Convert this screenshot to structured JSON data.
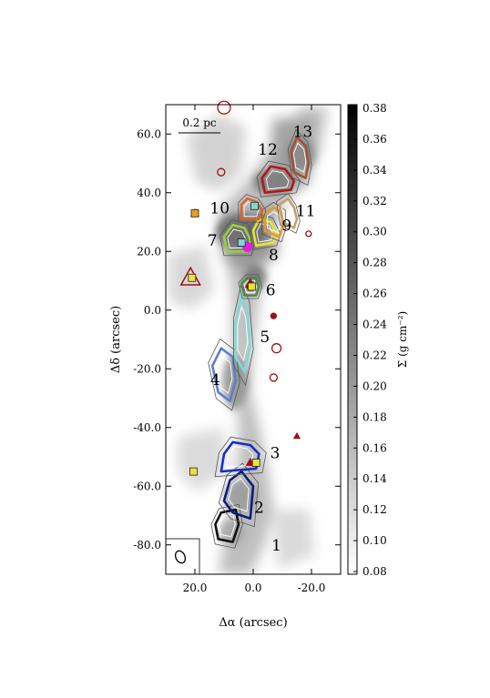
{
  "chart_data": {
    "type": "heatmap",
    "title": "",
    "xlabel": "Δα (arcsec)",
    "ylabel": "Δδ (arcsec)",
    "xlim": [
      30,
      -30
    ],
    "ylim": [
      -90,
      70
    ],
    "x_ticks": [
      {
        "v": 20,
        "label": "20.0"
      },
      {
        "v": 0,
        "label": "0.0"
      },
      {
        "v": -20,
        "label": "-20.0"
      }
    ],
    "y_ticks": [
      {
        "v": 60,
        "label": "60.0"
      },
      {
        "v": 40,
        "label": "40.0"
      },
      {
        "v": 20,
        "label": "20.0"
      },
      {
        "v": 0,
        "label": "0.0"
      },
      {
        "v": -20,
        "label": "-20.0"
      },
      {
        "v": -40,
        "label": "-40.0"
      },
      {
        "v": -60,
        "label": "-60.0"
      },
      {
        "v": -80,
        "label": "-80.0"
      }
    ],
    "scale_bar_label": "0.2 pc",
    "colorbar": {
      "label": "Σ (g cm⁻²)",
      "range": [
        0.08,
        0.38
      ],
      "ticks": [
        "0.38",
        "0.36",
        "0.34",
        "0.32",
        "0.30",
        "0.28",
        "0.26",
        "0.24",
        "0.22",
        "0.20",
        "0.18",
        "0.16",
        "0.14",
        "0.12",
        "0.10",
        "0.08"
      ]
    },
    "clumps": [
      {
        "label": "1",
        "x": 9,
        "y": -73,
        "color": "#111111"
      },
      {
        "label": "2",
        "x": 5,
        "y": -63,
        "color": "#0b1e7a"
      },
      {
        "label": "3",
        "x": 5,
        "y": -50,
        "color": "#1a2fbf"
      },
      {
        "label": "4",
        "x": 10,
        "y": -22,
        "color": "#5b7fc9"
      },
      {
        "label": "5",
        "x": 4,
        "y": -8,
        "color": "#7fd8d8"
      },
      {
        "label": "6",
        "x": 1,
        "y": 8,
        "color": "#4a8a4a"
      },
      {
        "label": "7",
        "x": 6,
        "y": 24,
        "color": "#9ad03a"
      },
      {
        "label": "8",
        "x": -4,
        "y": 26,
        "color": "#e6e62a"
      },
      {
        "label": "9",
        "x": -7,
        "y": 30,
        "color": "#e39a2a"
      },
      {
        "label": "10",
        "x": 1,
        "y": 34,
        "color": "#d9642a"
      },
      {
        "label": "11",
        "x": -12,
        "y": 33,
        "color": "#c8a06a"
      },
      {
        "label": "12",
        "x": -8,
        "y": 44,
        "color": "#b01818"
      },
      {
        "label": "13",
        "x": -16,
        "y": 52,
        "color": "#a0522d"
      }
    ],
    "number_labels": [
      {
        "text": "1",
        "x": -8,
        "y": -82
      },
      {
        "text": "2",
        "x": -2,
        "y": -69
      },
      {
        "text": "3",
        "x": -7.5,
        "y": -50.5
      },
      {
        "text": "4",
        "x": 13,
        "y": -25.5
      },
      {
        "text": "5",
        "x": -4,
        "y": -11
      },
      {
        "text": "6",
        "x": -6,
        "y": 5
      },
      {
        "text": "7",
        "x": 14,
        "y": 22
      },
      {
        "text": "8",
        "x": -7,
        "y": 17
      },
      {
        "text": "9",
        "x": -11.5,
        "y": 27
      },
      {
        "text": "10",
        "x": 11.5,
        "y": 33
      },
      {
        "text": "11",
        "x": -18,
        "y": 32
      },
      {
        "text": "12",
        "x": -5,
        "y": 53
      },
      {
        "text": "13",
        "x": -17,
        "y": 59
      }
    ],
    "square_markers": [
      {
        "x": 20,
        "y": 33,
        "fill": "#e8a020"
      },
      {
        "x": 21,
        "y": 11,
        "fill": "#f0e040"
      },
      {
        "x": 4,
        "y": 23,
        "fill": "#7fd8d8"
      },
      {
        "x": -0.5,
        "y": 35.5,
        "fill": "#7fd8d8"
      },
      {
        "x": 0.5,
        "y": 8,
        "fill": "#e6e62a"
      },
      {
        "x": -1,
        "y": -52,
        "fill": "#f0e040"
      },
      {
        "x": 20.5,
        "y": -55,
        "fill": "#f0e040"
      }
    ],
    "circle_markers": [
      {
        "x": 10,
        "y": 69,
        "r": 7,
        "filled": false
      },
      {
        "x": 11,
        "y": 47,
        "r": 4,
        "filled": false
      },
      {
        "x": -8,
        "y": -13,
        "r": 5,
        "filled": false
      },
      {
        "x": -7,
        "y": -23,
        "r": 4,
        "filled": false
      },
      {
        "x": -19,
        "y": 26,
        "r": 3,
        "filled": false
      },
      {
        "x": -7,
        "y": -2,
        "r": 3,
        "filled": true
      },
      {
        "x": 1,
        "y": 8,
        "r": 4,
        "filled": true
      },
      {
        "x": 2,
        "y": 21.5,
        "r": 5,
        "filled": true,
        "fill": "#e020e0"
      }
    ],
    "triangle_markers": [
      {
        "x": 21.5,
        "y": 11,
        "size": 11,
        "filled": false
      },
      {
        "x": 1,
        "y": 9,
        "size": 5,
        "filled": true
      },
      {
        "x": -15,
        "y": -43,
        "size": 3,
        "filled": true
      },
      {
        "x": 1,
        "y": -52,
        "size": 4,
        "filled": true
      },
      {
        "x": 20,
        "y": 33,
        "size": 4,
        "filled": true
      }
    ],
    "beam": {
      "x": 24,
      "y": -85
    }
  }
}
